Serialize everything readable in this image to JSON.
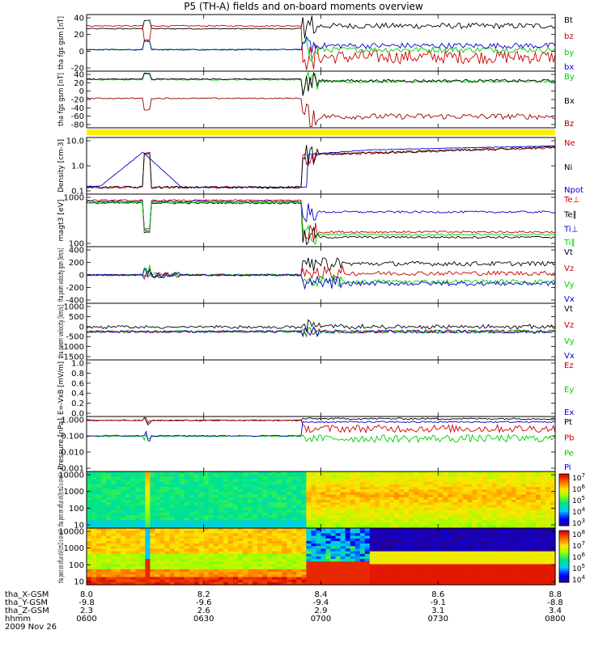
{
  "title": "P5 (TH-A) fields and on-board moments overview",
  "date_label": "2009 Nov 26",
  "orbit_rows": [
    {
      "label": "tha_X-GSM",
      "values": [
        "8.0",
        "8.2",
        "8.4",
        "8.6",
        "8.8"
      ]
    },
    {
      "label": "tha_Y-GSM",
      "values": [
        "-9.8",
        "-9.6",
        "-9.4",
        "-9.1",
        "-8.8"
      ]
    },
    {
      "label": "tha_Z-GSM",
      "values": [
        "2.3",
        "2.6",
        "2.9",
        "3.1",
        "3.4"
      ]
    },
    {
      "label": "hhmm",
      "values": [
        "0600",
        "0630",
        "0700",
        "0730",
        "0800"
      ]
    }
  ],
  "chart_data": [
    {
      "type": "line",
      "ylabel": "tha fgs gsm [nT]",
      "ylim": [
        -30,
        45
      ],
      "ticks": [
        "40",
        "20",
        "0",
        "-20"
      ],
      "series": [
        {
          "name": "Bt",
          "color": "#000000"
        },
        {
          "name": "bz",
          "color": "#cc0000"
        },
        {
          "name": "by",
          "color": "#00cc00"
        },
        {
          "name": "bx",
          "color": "#0000cc"
        }
      ]
    },
    {
      "type": "line",
      "ylabel": "tha fgs gsm [nT]",
      "ylim": [
        -95,
        45
      ],
      "ticks": [
        "40",
        "20",
        "0",
        "-20",
        "-40",
        "-60",
        "-80"
      ],
      "series": [
        {
          "name": "By",
          "color": "#00cc00"
        },
        {
          "name": "Bx",
          "color": "#000000"
        },
        {
          "name": "Bz",
          "color": "#990000"
        }
      ]
    },
    {
      "type": "line",
      "ylabel": "Density [cm-3]",
      "scale": "log",
      "ticks": [
        "10.0",
        "1.0",
        "0.1"
      ],
      "series": [
        {
          "name": "Ne",
          "color": "#cc0000"
        },
        {
          "name": "Ni",
          "color": "#000000"
        },
        {
          "name": "Npot",
          "color": "#0000cc"
        }
      ]
    },
    {
      "type": "line",
      "ylabel": "magt3 [eV]",
      "scale": "log",
      "ticks": [
        "1000",
        "100"
      ],
      "series": [
        {
          "name": "Te⊥",
          "color": "#cc0000"
        },
        {
          "name": "Te∥",
          "color": "#000000"
        },
        {
          "name": "Ti⊥",
          "color": "#0000cc"
        },
        {
          "name": "Ti∥",
          "color": "#00cc00"
        }
      ]
    },
    {
      "type": "line",
      "ylabel": "tha peim velocity gsm [km/s]",
      "ylim": [
        -400,
        400
      ],
      "ticks": [
        "400",
        "200",
        "0",
        "-200",
        "-400"
      ],
      "series": [
        {
          "name": "Vt",
          "color": "#000000"
        },
        {
          "name": "Vz",
          "color": "#cc0000"
        },
        {
          "name": "Vy",
          "color": "#00cc00"
        },
        {
          "name": "Vx",
          "color": "#0000cc"
        }
      ]
    },
    {
      "type": "line",
      "ylabel": "tha peem velocity [km/s]",
      "ylim": [
        -1500,
        1500
      ],
      "ticks": [
        "1000",
        "500",
        "0",
        "-500",
        "-1000",
        "-1500"
      ],
      "series": [
        {
          "name": "Vt",
          "color": "#000000"
        },
        {
          "name": "Vz",
          "color": "#cc0000"
        },
        {
          "name": "Vy",
          "color": "#00cc00"
        },
        {
          "name": "Vx",
          "color": "#0000cc"
        }
      ]
    },
    {
      "type": "line",
      "ylabel": "E=-VxB [mV/m]",
      "ylim": [
        0,
        1
      ],
      "ticks": [
        "1.0",
        "0.8",
        "0.6",
        "0.4",
        "0.2",
        "0.0"
      ],
      "series": [
        {
          "name": "Ez",
          "color": "#cc0000"
        },
        {
          "name": "Ey",
          "color": "#00cc00"
        },
        {
          "name": "Ex",
          "color": "#0000cc"
        }
      ]
    },
    {
      "type": "line",
      "ylabel": "Pressure [nPa]",
      "scale": "log",
      "ticks": [
        "1.000",
        "0.100",
        "0.010",
        "0.001"
      ],
      "series": [
        {
          "name": "Pt",
          "color": "#000000"
        },
        {
          "name": "Pb",
          "color": "#cc0000"
        },
        {
          "name": "Pe",
          "color": "#00cc00"
        },
        {
          "name": "Pi",
          "color": "#0000cc"
        }
      ]
    },
    {
      "type": "heatmap",
      "ylabel": "tha peir en eflux eV/(cm2-s-sr-eV)",
      "scale": "log",
      "ticks": [
        "10000",
        "1000",
        "100",
        "10"
      ],
      "colorbar_ticks": [
        "10^7",
        "10^6",
        "10^5",
        "10^4",
        "10^3"
      ]
    },
    {
      "type": "heatmap",
      "ylabel": "tha peer en eflux eV/(cm2-s-sr-eV)",
      "scale": "log",
      "ticks": [
        "10000",
        "1000",
        "100",
        "10"
      ],
      "colorbar_ticks": [
        "10^8",
        "10^7",
        "10^6",
        "10^5",
        "10^4"
      ]
    }
  ]
}
